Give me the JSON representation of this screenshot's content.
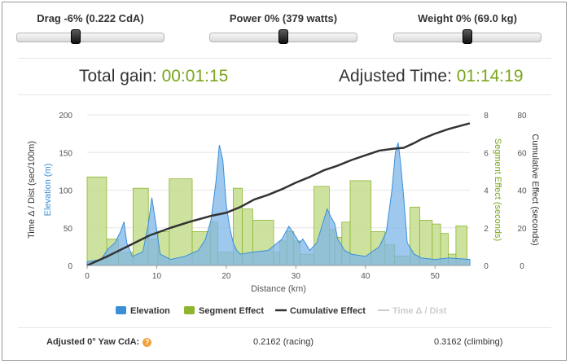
{
  "controls": {
    "drag": {
      "label": "Drag -6% (0.222 CdA)",
      "level": 0.4
    },
    "power": {
      "label": "Power 0% (379 watts)",
      "level": 0.5
    },
    "weight": {
      "label": "Weight 0% (69.0 kg)",
      "level": 0.5
    }
  },
  "summary": {
    "total_gain_label": "Total gain:",
    "total_gain_value": "00:01:15",
    "adjusted_time_label": "Adjusted Time:",
    "adjusted_time_value": "01:14:19"
  },
  "footer": {
    "cda_label": "Adjusted 0° Yaw CdA:",
    "racing": "0.2162 (racing)",
    "climbing": "0.3162 (climbing)"
  },
  "colors": {
    "elevation": "#7eb5e8",
    "elevation_stroke": "#3a8fd6",
    "segment": "#c5dd8f",
    "segment_stroke": "#8db52f",
    "cumulative": "#333333",
    "time_dist": "#cccccc",
    "accent_green": "#7aa51b"
  },
  "chart_data": {
    "type": "area",
    "xlabel": "Distance (km)",
    "xlim": [
      0,
      55
    ],
    "x_ticks": [
      0,
      10,
      20,
      30,
      40,
      50
    ],
    "axes": {
      "left_outer": {
        "label": "Time Δ / Dist (sec/100m)",
        "ticks": [
          0,
          50,
          100,
          150,
          200
        ],
        "ylim": [
          0,
          200
        ]
      },
      "left_inner": {
        "label": "Elevation (m)",
        "ylim": [
          0,
          200
        ]
      },
      "right_inner": {
        "label": "Segment Effect (seconds)",
        "ticks": [
          0,
          2,
          4,
          6,
          8
        ],
        "ylim": [
          0,
          8
        ]
      },
      "right_outer": {
        "label": "Cumulative Effect (seconds)",
        "ticks": [
          0,
          20,
          40,
          60,
          80
        ],
        "ylim": [
          0,
          80
        ]
      }
    },
    "legend": [
      "Elevation",
      "Segment Effect",
      "Cumulative Effect",
      "Time Δ / Dist"
    ],
    "series": [
      {
        "name": "Elevation",
        "x": [
          0,
          2,
          3,
          4,
          4.8,
          5.3,
          5.7,
          6.5,
          8,
          8.8,
          9.3,
          9.8,
          10.5,
          12,
          14,
          16,
          17,
          17.8,
          18.5,
          19,
          19.5,
          20,
          20.5,
          21,
          21.5,
          22,
          24,
          26,
          28,
          29,
          29.5,
          30,
          30.5,
          31,
          32,
          33,
          34,
          34.5,
          35,
          35.6,
          36,
          37,
          38,
          40,
          42,
          43,
          43.8,
          44.3,
          44.7,
          45,
          45.5,
          46,
          47,
          48,
          50,
          52,
          55
        ],
        "values": [
          5,
          8,
          22,
          30,
          45,
          58,
          30,
          12,
          18,
          55,
          90,
          60,
          15,
          8,
          12,
          20,
          35,
          60,
          110,
          160,
          140,
          80,
          50,
          30,
          20,
          15,
          18,
          20,
          35,
          52,
          45,
          38,
          30,
          35,
          20,
          30,
          60,
          75,
          65,
          55,
          35,
          20,
          15,
          12,
          25,
          45,
          100,
          150,
          163,
          140,
          90,
          30,
          15,
          10,
          8,
          10,
          8
        ]
      },
      {
        "name": "Segment Effect",
        "bars": [
          [
            0,
            2.8,
            4.7
          ],
          [
            2.8,
            4.5,
            1.4
          ],
          [
            4.5,
            6.6,
            0.7
          ],
          [
            6.6,
            8.8,
            4.1
          ],
          [
            8.8,
            10.2,
            1.4
          ],
          [
            10.2,
            11.8,
            1.8
          ],
          [
            11.8,
            15.1,
            4.6
          ],
          [
            15.1,
            17.7,
            1.8
          ],
          [
            17.7,
            18.8,
            2.3
          ],
          [
            18.8,
            21.0,
            0.7
          ],
          [
            21.0,
            22.3,
            4.1
          ],
          [
            22.3,
            23.8,
            3.0
          ],
          [
            23.8,
            26.8,
            2.4
          ],
          [
            26.8,
            27.7,
            0.7
          ],
          [
            27.7,
            28.7,
            1.3
          ],
          [
            28.7,
            29.7,
            1.8
          ],
          [
            29.7,
            30.6,
            1.3
          ],
          [
            30.6,
            32.6,
            0.6
          ],
          [
            32.6,
            34.8,
            4.2
          ],
          [
            34.8,
            35.6,
            1.9
          ],
          [
            35.6,
            36.6,
            1.5
          ],
          [
            36.6,
            37.8,
            2.3
          ],
          [
            37.8,
            40.8,
            4.5
          ],
          [
            40.8,
            42.8,
            1.8
          ],
          [
            42.8,
            44.2,
            1.1
          ],
          [
            44.2,
            46.4,
            0.5
          ],
          [
            46.4,
            47.8,
            3.1
          ],
          [
            47.8,
            49.6,
            2.4
          ],
          [
            49.6,
            50.8,
            2.2
          ],
          [
            50.8,
            51.9,
            1.7
          ],
          [
            51.9,
            53.0,
            0.6
          ],
          [
            53.0,
            54.6,
            2.1
          ]
        ]
      },
      {
        "name": "Cumulative Effect",
        "x": [
          0,
          3,
          6,
          9,
          12,
          15,
          18,
          20,
          22,
          24,
          26,
          28,
          30,
          32,
          34,
          36,
          38,
          40,
          42,
          44,
          45.5,
          47,
          48,
          50,
          52,
          54,
          55
        ],
        "values": [
          0,
          5,
          10.5,
          16,
          20,
          23.5,
          26.5,
          28,
          31,
          35,
          37.5,
          40.5,
          44,
          47,
          50.5,
          53,
          56,
          58.5,
          61,
          62,
          62.5,
          65,
          67,
          70,
          72.5,
          74.5,
          75.5
        ]
      },
      {
        "name": "Time Δ / Dist"
      }
    ]
  }
}
